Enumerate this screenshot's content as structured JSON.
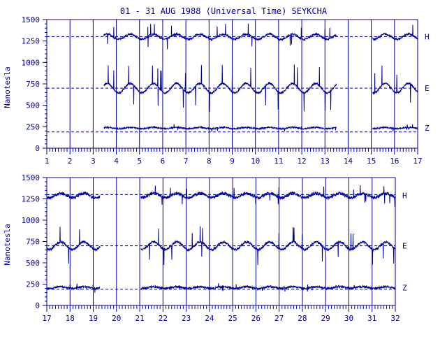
{
  "chart_data": {
    "type": "line",
    "title": "01 - 31 AUG 1988 (Universal Time) SEYKCHA",
    "ylabel": "Nanotesla",
    "units": "nT",
    "colors": {
      "ink": "#00009c",
      "background": "#ffffff"
    },
    "panels": [
      {
        "id": "top",
        "xlim": [
          1,
          17
        ],
        "ylim": [
          0,
          1500
        ],
        "x_ticks": [
          1,
          2,
          3,
          4,
          5,
          6,
          7,
          8,
          9,
          10,
          11,
          12,
          13,
          14,
          15,
          16,
          17
        ],
        "y_ticks": [
          0,
          250,
          500,
          750,
          1000,
          1250,
          1500
        ],
        "reference_levels": [
          1300,
          700,
          190
        ],
        "gaps": [
          [
            1,
            3.45
          ],
          [
            13.5,
            15.05
          ]
        ],
        "series": [
          {
            "name": "H",
            "base": 1300,
            "amp": 30,
            "noise": 12
          },
          {
            "name": "E",
            "base": 700,
            "amp": 55,
            "noise": 10
          },
          {
            "name": "Z",
            "base": 235,
            "amp": 8,
            "noise": 8
          }
        ]
      },
      {
        "id": "bottom",
        "xlim": [
          17,
          32
        ],
        "ylim": [
          0,
          1500
        ],
        "x_ticks": [
          17,
          18,
          19,
          20,
          21,
          22,
          23,
          24,
          25,
          26,
          27,
          28,
          29,
          30,
          31,
          32
        ],
        "y_ticks": [
          0,
          250,
          500,
          750,
          1000,
          1250,
          1500
        ],
        "reference_levels": [
          1300,
          700,
          190
        ],
        "gaps": [
          [
            19.3,
            21.05
          ]
        ],
        "series": [
          {
            "name": "H",
            "base": 1290,
            "amp": 25,
            "noise": 18
          },
          {
            "name": "E",
            "base": 700,
            "amp": 45,
            "noise": 14
          },
          {
            "name": "Z",
            "base": 210,
            "amp": 10,
            "noise": 12
          }
        ]
      }
    ]
  }
}
